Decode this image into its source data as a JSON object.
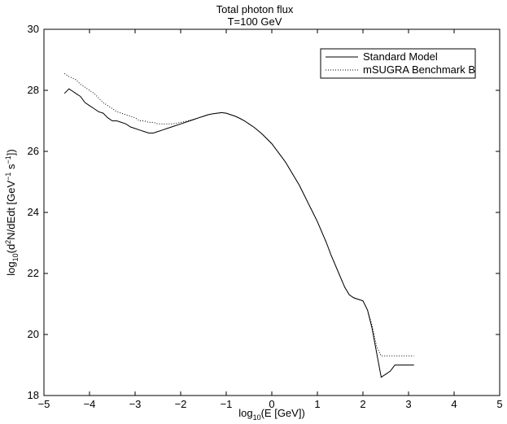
{
  "chart_data": {
    "type": "line",
    "title": [
      "Total photon flux",
      "T=100 GeV"
    ],
    "xlabel": {
      "prefix": "log",
      "sub": "10",
      "rest": "(E [GeV])"
    },
    "ylabel": {
      "prefix": "log",
      "sub": "10",
      "rest1": "(d",
      "sup1": "2",
      "rest2": "N/dEdt [GeV",
      "sup2": "−1",
      "rest3": " s",
      "sup3": "−1",
      "rest4": "])"
    },
    "xlim": [
      -5,
      5
    ],
    "ylim": [
      18,
      30
    ],
    "xticks": [
      -5,
      -4,
      -3,
      -2,
      -1,
      0,
      1,
      2,
      3,
      4,
      5
    ],
    "yticks": [
      18,
      20,
      22,
      24,
      26,
      28,
      30
    ],
    "legend_position": "top-right",
    "series": [
      {
        "name": "Standard Model",
        "style": "solid",
        "x": [
          -4.55,
          -4.45,
          -4.3,
          -4.2,
          -4.1,
          -4.0,
          -3.9,
          -3.8,
          -3.7,
          -3.6,
          -3.5,
          -3.4,
          -3.3,
          -3.2,
          -3.1,
          -3.0,
          -2.9,
          -2.8,
          -2.7,
          -2.6,
          -2.5,
          -2.4,
          -2.3,
          -2.2,
          -2.1,
          -2.0,
          -1.9,
          -1.8,
          -1.7,
          -1.6,
          -1.5,
          -1.4,
          -1.3,
          -1.2,
          -1.1,
          -1.0,
          -0.9,
          -0.8,
          -0.7,
          -0.6,
          -0.5,
          -0.4,
          -0.3,
          -0.2,
          -0.1,
          0.0,
          0.1,
          0.2,
          0.3,
          0.4,
          0.5,
          0.6,
          0.7,
          0.8,
          0.9,
          1.0,
          1.1,
          1.2,
          1.3,
          1.4,
          1.5,
          1.6,
          1.7,
          1.8,
          1.9,
          2.0,
          2.1,
          2.2,
          2.3,
          2.4,
          2.5,
          2.6,
          2.65,
          2.7,
          2.75,
          2.8,
          2.85,
          2.9,
          2.95,
          3.0,
          3.03,
          3.06,
          3.09,
          3.12
        ],
        "y": [
          27.9,
          28.05,
          27.9,
          27.8,
          27.6,
          27.5,
          27.4,
          27.3,
          27.25,
          27.1,
          27.0,
          27.0,
          26.95,
          26.9,
          26.8,
          26.75,
          26.7,
          26.65,
          26.6,
          26.6,
          26.65,
          26.7,
          26.75,
          26.8,
          26.85,
          26.9,
          26.95,
          27.0,
          27.05,
          27.1,
          27.15,
          27.2,
          27.23,
          27.25,
          27.27,
          27.25,
          27.2,
          27.15,
          27.08,
          27.0,
          26.9,
          26.8,
          26.68,
          26.55,
          26.4,
          26.25,
          26.05,
          25.85,
          25.65,
          25.4,
          25.15,
          24.9,
          24.6,
          24.3,
          24.0,
          23.7,
          23.35,
          23.0,
          22.6,
          22.25,
          21.9,
          21.55,
          21.3,
          21.2,
          21.15,
          21.1,
          20.8,
          20.2,
          19.4,
          18.6,
          18.7,
          18.8,
          18.9,
          19.0,
          19.0,
          19.0,
          19.0,
          19.0,
          19.0,
          19.0,
          19.0,
          19.0,
          19.0,
          19.0
        ]
      },
      {
        "name": "mSUGRA Benchmark B",
        "style": "dotted",
        "x": [
          -4.55,
          -4.45,
          -4.3,
          -4.2,
          -4.1,
          -4.0,
          -3.9,
          -3.8,
          -3.7,
          -3.6,
          -3.5,
          -3.4,
          -3.3,
          -3.2,
          -3.1,
          -3.0,
          -2.9,
          -2.8,
          -2.7,
          -2.6,
          -2.5,
          -2.4,
          -2.3,
          -2.2,
          -2.1,
          -2.0,
          -1.9,
          -1.8,
          -1.7,
          -1.6,
          -1.5,
          -1.4,
          -1.3,
          -1.2,
          -1.1,
          -1.0,
          -0.9,
          -0.8,
          -0.7,
          -0.6,
          -0.5,
          -0.4,
          -0.3,
          -0.2,
          -0.1,
          0.0,
          0.1,
          0.2,
          0.3,
          0.4,
          0.5,
          0.6,
          0.7,
          0.8,
          0.9,
          1.0,
          1.1,
          1.2,
          1.3,
          1.4,
          1.5,
          1.6,
          1.7,
          1.8,
          1.9,
          2.0,
          2.1,
          2.2,
          2.3,
          2.4,
          2.5,
          2.6,
          2.65,
          2.7,
          2.75,
          2.8,
          2.85,
          2.9,
          2.95,
          3.0,
          3.03,
          3.06,
          3.09,
          3.12
        ],
        "y": [
          28.55,
          28.45,
          28.35,
          28.2,
          28.1,
          28.0,
          27.9,
          27.75,
          27.6,
          27.5,
          27.4,
          27.3,
          27.25,
          27.2,
          27.15,
          27.1,
          27.0,
          27.0,
          26.95,
          26.95,
          26.9,
          26.9,
          26.9,
          26.9,
          26.92,
          26.95,
          26.98,
          27.02,
          27.06,
          27.1,
          27.15,
          27.2,
          27.23,
          27.25,
          27.27,
          27.25,
          27.2,
          27.15,
          27.08,
          27.0,
          26.9,
          26.8,
          26.68,
          26.55,
          26.4,
          26.25,
          26.05,
          25.85,
          25.65,
          25.4,
          25.15,
          24.9,
          24.6,
          24.3,
          24.0,
          23.7,
          23.35,
          23.0,
          22.6,
          22.25,
          21.9,
          21.55,
          21.3,
          21.2,
          21.15,
          21.1,
          20.8,
          20.3,
          19.6,
          19.3,
          19.3,
          19.3,
          19.3,
          19.3,
          19.3,
          19.3,
          19.3,
          19.3,
          19.3,
          19.3,
          19.3,
          19.3,
          19.3,
          19.3
        ]
      }
    ]
  }
}
